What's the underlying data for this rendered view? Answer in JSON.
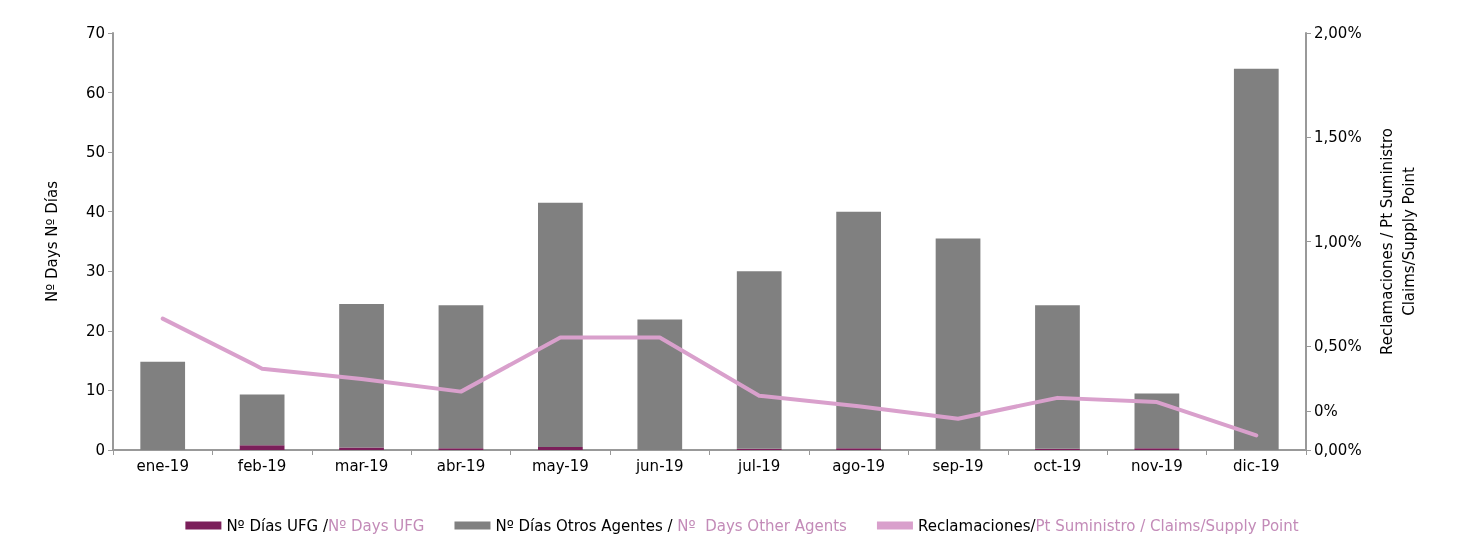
{
  "chart_data": {
    "type": "bar",
    "stacked": true,
    "categories": [
      "ene-19",
      "feb-19",
      "mar-19",
      "abr-19",
      "may-19",
      "jun-19",
      "jul-19",
      "ago-19",
      "sep-19",
      "oct-19",
      "nov-19",
      "dic-19"
    ],
    "series": [
      {
        "name": "Nº Días UFG /Nº Days UFG",
        "color": "#7b1f5a",
        "values": [
          0,
          0.8,
          0.4,
          0.3,
          0.5,
          0,
          0.2,
          0.3,
          0,
          0.2,
          0.3,
          0
        ]
      },
      {
        "name": "Nº Días Otros Agentes / Nº  Days Other Agents",
        "color": "#808080",
        "values": [
          14.8,
          8.5,
          24.1,
          24.0,
          41.0,
          21.9,
          29.8,
          39.7,
          35.5,
          24.1,
          9.2,
          64.0
        ]
      },
      {
        "name": "Reclamaciones/Pt Suministro / Claims/Supply Point",
        "type": "line",
        "axis": "y2",
        "color": "#d9a0cc",
        "values": [
          0.63,
          0.39,
          0.34,
          0.28,
          0.54,
          0.54,
          0.26,
          0.21,
          0.15,
          0.25,
          0.23,
          0.07
        ]
      }
    ],
    "ylabel": "Nº Days Nº Días",
    "y2label": "Reclamaciones / Pt Suministro\nClaims/Supply Point",
    "ylim": [
      0,
      70
    ],
    "yticks": [
      0,
      10,
      20,
      30,
      40,
      50,
      60,
      70
    ],
    "y2lim": [
      0,
      2
    ],
    "y2ticks": [
      {
        "value": 0,
        "label": "0,00%"
      },
      {
        "value": 0.185,
        "label": "0%"
      },
      {
        "value": 0.5,
        "label": "0,50%"
      },
      {
        "value": 1,
        "label": "1,00%"
      },
      {
        "value": 1.5,
        "label": "1,50%"
      },
      {
        "value": 2,
        "label": "2,00%"
      }
    ],
    "marker": "none",
    "line_style": "solid",
    "legend": "bottom",
    "grid": false
  }
}
